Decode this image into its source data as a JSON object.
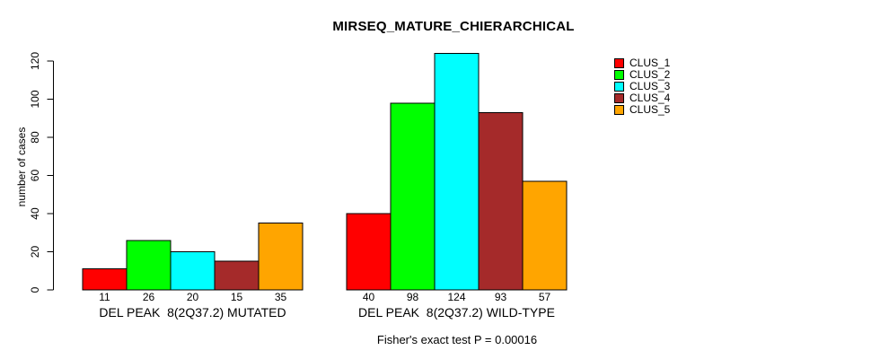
{
  "chart_data": {
    "type": "bar",
    "title": "MIRSEQ_MATURE_CHIERARCHICAL",
    "ylabel": "number of cases",
    "xlabel": "",
    "annotation": "Fisher's exact test P = 0.00016",
    "yticks": [
      0,
      20,
      40,
      60,
      80,
      100,
      120
    ],
    "ylim": [
      0,
      130
    ],
    "grid": false,
    "legend_position": "right",
    "bar_border_color": "#000000",
    "value_labels_shown": true,
    "groups": [
      {
        "label": "DEL PEAK  8(2Q37.2) MUTATED",
        "values": [
          11,
          26,
          20,
          15,
          35
        ]
      },
      {
        "label": "DEL PEAK  8(2Q37.2) WILD-TYPE",
        "values": [
          40,
          98,
          124,
          93,
          57
        ]
      }
    ],
    "series": [
      {
        "name": "CLUS_1",
        "color": "#FF0000"
      },
      {
        "name": "CLUS_2",
        "color": "#00FF00"
      },
      {
        "name": "CLUS_3",
        "color": "#00FFFF"
      },
      {
        "name": "CLUS_4",
        "color": "#A52A2A"
      },
      {
        "name": "CLUS_5",
        "color": "#FFA500"
      }
    ]
  }
}
